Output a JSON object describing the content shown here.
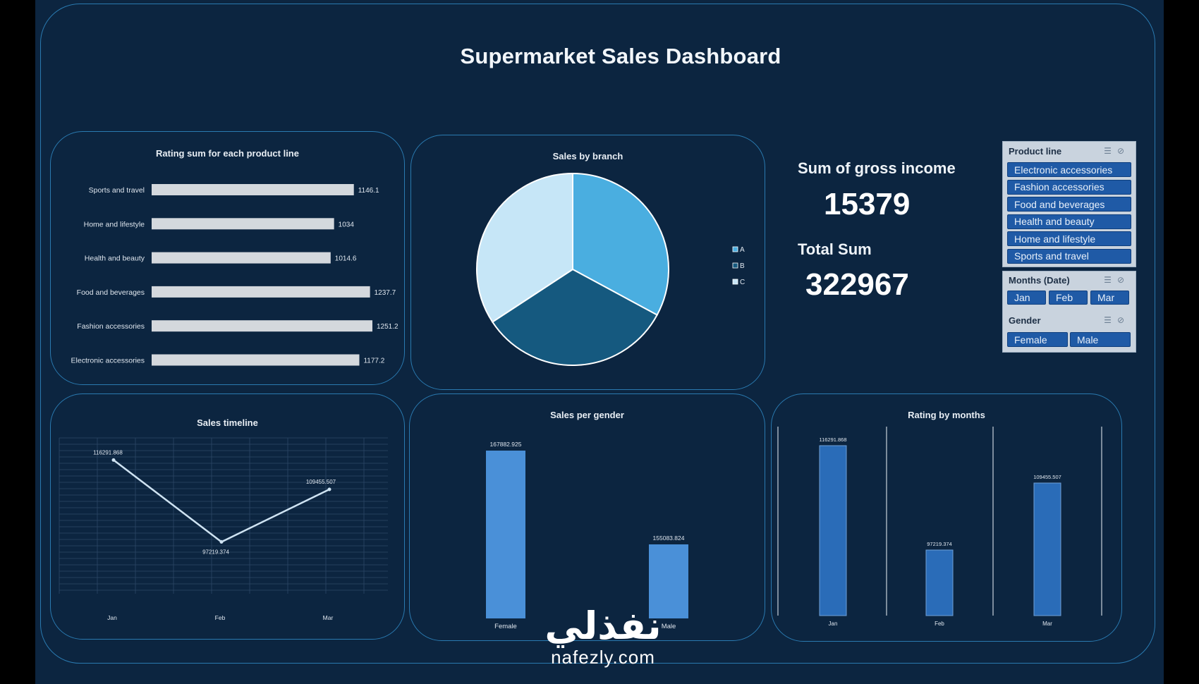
{
  "dashboard": {
    "title": "Supermarket Sales Dashboard"
  },
  "kpis": {
    "gross_label": "Sum of gross income",
    "gross_value": "15379",
    "total_label": "Total Sum",
    "total_value": "322967"
  },
  "slicers": {
    "product_line": {
      "title": "Product line",
      "items": [
        "Electronic accessories",
        "Fashion accessories",
        "Food and beverages",
        "Health and beauty",
        "Home and lifestyle",
        "Sports and travel"
      ]
    },
    "months": {
      "title": "Months (Date)",
      "items": [
        "Jan",
        "Feb",
        "Mar"
      ]
    },
    "gender": {
      "title": "Gender",
      "items": [
        "Female",
        "Male"
      ]
    },
    "icons": [
      "multi-select-icon",
      "clear-filter-icon"
    ]
  },
  "watermark": {
    "arabic": "نفذلي",
    "latin": "nafezly.com"
  },
  "colors": {
    "background": "#0c2540",
    "border": "#2a7ab0",
    "bar_gray": "#d4d8dd",
    "pie": [
      "#4aaee0",
      "#15597f",
      "#c6e6f7"
    ],
    "gender_bar": "#4a90d8",
    "month_bar": "#2a6cb8",
    "chip": "#1f5aa6"
  },
  "chart_data": [
    {
      "id": "rating",
      "type": "bar",
      "orientation": "horizontal",
      "title": "Rating sum for each product line",
      "categories": [
        "Sports and travel",
        "Home and lifestyle",
        "Health and beauty",
        "Food and beverages",
        "Fashion accessories",
        "Electronic accessories"
      ],
      "values": [
        1146.1,
        1034,
        1014.6,
        1237.7,
        1251.2,
        1177.2
      ],
      "value_labels": [
        "1146.1",
        "1034",
        "1014.6",
        "1237.7",
        "1251.2",
        "1177.2"
      ],
      "xlim": [
        0,
        1300
      ]
    },
    {
      "id": "branch",
      "type": "pie",
      "title": "Sales by branch",
      "labels": [
        "A",
        "B",
        "C"
      ],
      "values": [
        106200,
        106197,
        110570
      ],
      "legend": "right"
    },
    {
      "id": "timeline",
      "type": "line",
      "title": "Sales timeline",
      "categories": [
        "Jan",
        "Feb",
        "Mar"
      ],
      "values": [
        116291.868,
        97219.374,
        109455.507
      ],
      "value_labels": [
        "116291.868",
        "97219.374",
        "109455.507"
      ],
      "grid": true
    },
    {
      "id": "gender",
      "type": "bar",
      "title": "Sales per gender",
      "categories": [
        "Female",
        "Male"
      ],
      "values": [
        167882.925,
        155083.824
      ],
      "value_labels": [
        "167882.925",
        "155083.824"
      ]
    },
    {
      "id": "months",
      "type": "bar",
      "title": "Rating by months",
      "categories": [
        "Jan",
        "Feb",
        "Mar"
      ],
      "values": [
        116291.868,
        97219.374,
        109455.507
      ],
      "value_labels": [
        "116291.868",
        "97219.374",
        "109455.507"
      ]
    }
  ]
}
